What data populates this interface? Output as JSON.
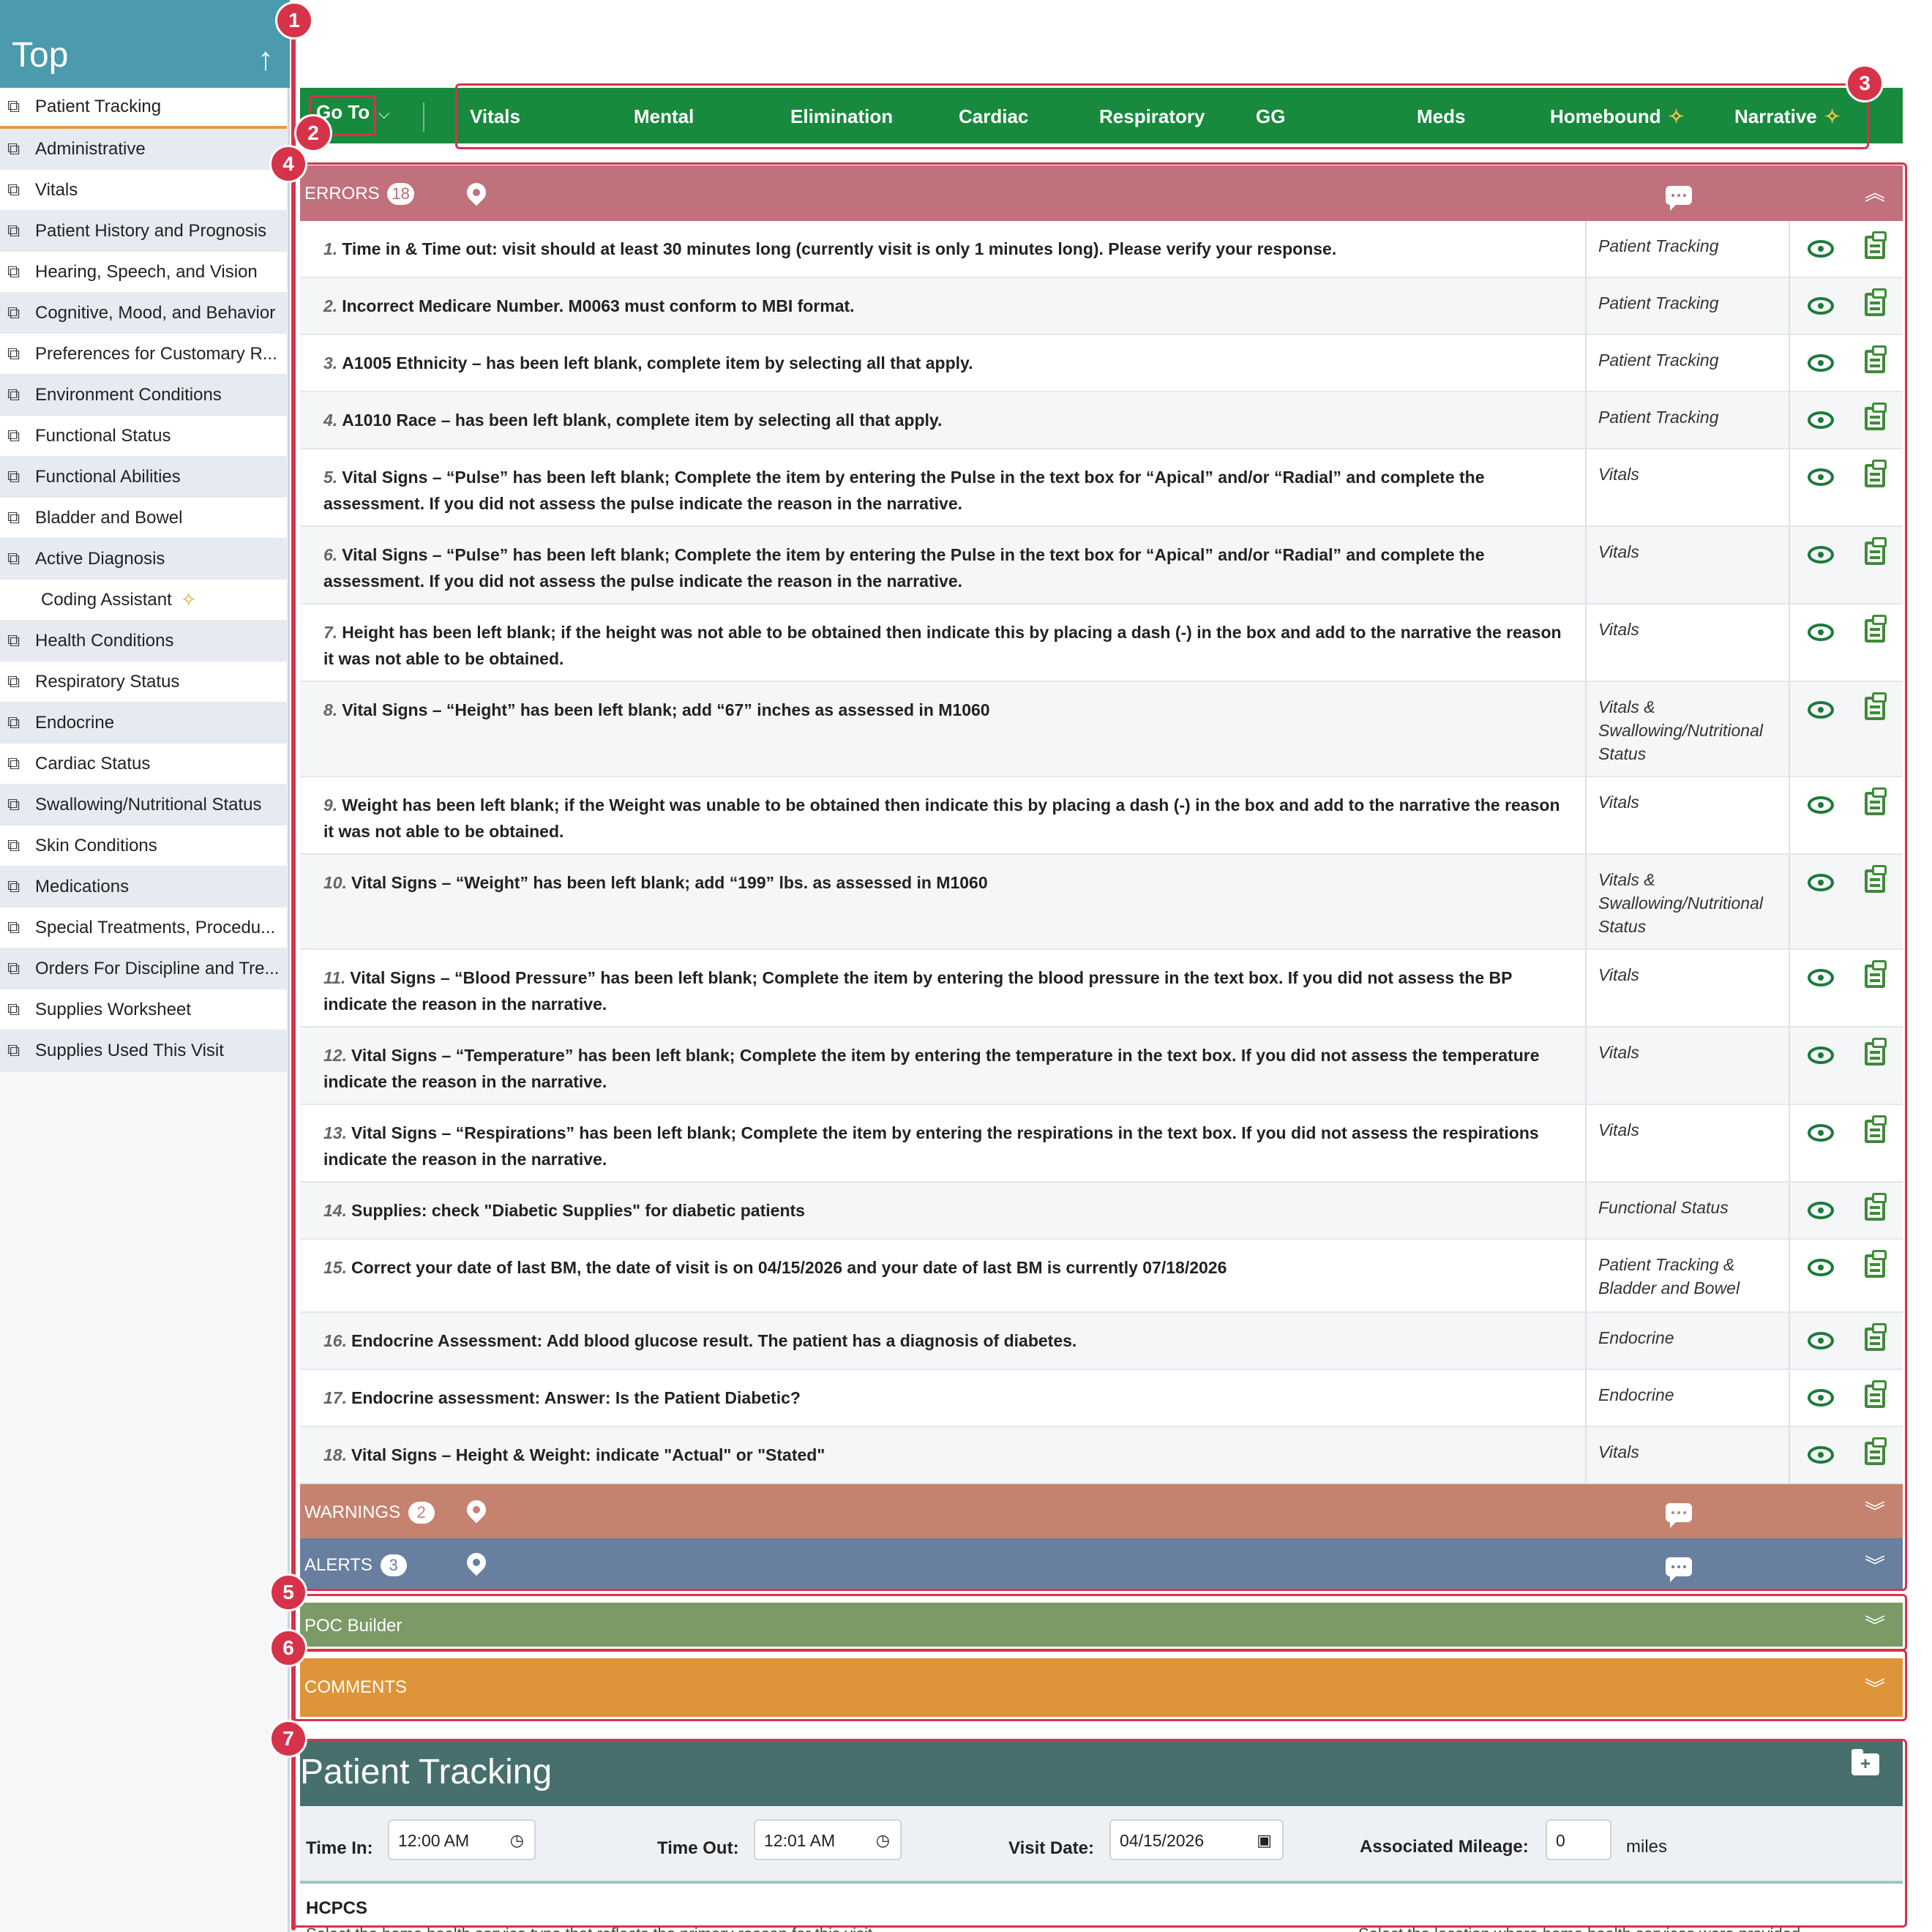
{
  "sidebar": {
    "top_label": "Top",
    "top_arrow": "↑",
    "items": [
      {
        "label": "Patient Tracking",
        "icon": "external-link-icon",
        "active": true
      },
      {
        "label": "Administrative",
        "icon": "external-link-icon"
      },
      {
        "label": "Vitals",
        "icon": "external-link-icon"
      },
      {
        "label": "Patient History and Prognosis",
        "icon": "external-link-icon"
      },
      {
        "label": "Hearing, Speech, and Vision",
        "icon": "external-link-icon"
      },
      {
        "label": "Cognitive, Mood, and Behavior",
        "icon": "external-link-icon"
      },
      {
        "label": "Preferences for Customary R...",
        "icon": "external-link-icon"
      },
      {
        "label": "Environment Conditions",
        "icon": "external-link-icon"
      },
      {
        "label": "Functional Status",
        "icon": "external-link-icon"
      },
      {
        "label": "Functional Abilities",
        "icon": "external-link-icon"
      },
      {
        "label": "Bladder and Bowel",
        "icon": "external-link-icon"
      },
      {
        "label": "Active Diagnosis",
        "icon": "external-link-icon"
      },
      {
        "label": "Coding Assistant",
        "icon": "sparkle-icon"
      },
      {
        "label": "Health Conditions",
        "icon": "external-link-icon"
      },
      {
        "label": "Respiratory Status",
        "icon": "external-link-icon"
      },
      {
        "label": "Endocrine",
        "icon": "external-link-icon"
      },
      {
        "label": "Cardiac Status",
        "icon": "external-link-icon"
      },
      {
        "label": "Swallowing/Nutritional Status",
        "icon": "external-link-icon"
      },
      {
        "label": "Skin Conditions",
        "icon": "external-link-icon"
      },
      {
        "label": "Medications",
        "icon": "external-link-icon"
      },
      {
        "label": "Special Treatments, Procedu...",
        "icon": "external-link-icon"
      },
      {
        "label": "Orders For Discipline and Tre...",
        "icon": "external-link-icon"
      },
      {
        "label": "Supplies Worksheet",
        "icon": "external-link-icon"
      },
      {
        "label": "Supplies Used This Visit",
        "icon": "external-link-icon"
      }
    ]
  },
  "topnav": {
    "goto_label": "Go To",
    "tabs": [
      "Vitals",
      "Mental",
      "Elimination",
      "Cardiac",
      "Respiratory",
      "GG",
      "Meds",
      "Homebound",
      "Narrative"
    ],
    "color": "#178a3d"
  },
  "callouts": [
    "1",
    "2",
    "3",
    "4",
    "5",
    "6",
    "7"
  ],
  "errors_panel": {
    "title": "ERRORS",
    "count": "18",
    "color": "#c0717b"
  },
  "errors": [
    {
      "n": "1.",
      "text": "Time in & Time out: visit should at least 30 minutes long (currently visit is only 1 minutes long). Please verify your response.",
      "section": "Patient Tracking"
    },
    {
      "n": "2.",
      "text": "Incorrect Medicare Number. M0063 must conform to MBI format.",
      "section": "Patient Tracking"
    },
    {
      "n": "3.",
      "text": "A1005 Ethnicity – has been left blank, complete item by selecting all that apply.",
      "section": "Patient Tracking"
    },
    {
      "n": "4.",
      "text": "A1010 Race – has been left blank, complete item by selecting all that apply.",
      "section": "Patient Tracking"
    },
    {
      "n": "5.",
      "text": "Vital Signs – “Pulse” has been left blank; Complete the item by entering the Pulse in the text box for “Apical” and/or “Radial” and complete the assessment. If you did not assess the pulse indicate the reason in the narrative.",
      "section": "Vitals"
    },
    {
      "n": "6.",
      "text": "Vital Signs – “Pulse” has been left blank; Complete the item by entering the Pulse in the text box for “Apical” and/or “Radial” and complete the assessment. If you did not assess the pulse indicate the reason in the narrative.",
      "section": "Vitals"
    },
    {
      "n": "7.",
      "text": "Height has been left blank; if the height was not able to be obtained then indicate this by placing a dash (-) in the box and add to the narrative the reason it was not able to be obtained.",
      "section": "Vitals"
    },
    {
      "n": "8.",
      "text": "Vital Signs – “Height” has been left blank; add “67” inches as assessed in M1060",
      "section": "Vitals & Swallowing/Nutritional Status"
    },
    {
      "n": "9.",
      "text": "Weight has been left blank; if the Weight was unable to be obtained then indicate this by placing a dash (-) in the box and add to the narrative the reason it was not able to be obtained.",
      "section": "Vitals"
    },
    {
      "n": "10.",
      "text": "Vital Signs – “Weight” has been left blank; add “199” lbs. as assessed in M1060",
      "section": "Vitals & Swallowing/Nutritional Status"
    },
    {
      "n": "11.",
      "text": "Vital Signs – “Blood Pressure” has been left blank; Complete the item by entering the blood pressure in the text box. If you did not assess the BP indicate the reason in the narrative.",
      "section": "Vitals"
    },
    {
      "n": "12.",
      "text": "Vital Signs – “Temperature” has been left blank; Complete the item by entering the temperature in the text box. If you did not assess the temperature indicate the reason in the narrative.",
      "section": "Vitals"
    },
    {
      "n": "13.",
      "text": "Vital Signs – “Respirations” has been left blank; Complete the item by entering the respirations in the text box. If you did not assess the respirations indicate the reason in the narrative.",
      "section": "Vitals"
    },
    {
      "n": "14.",
      "text": "Supplies: check \"Diabetic Supplies\" for diabetic patients",
      "section": "Functional Status"
    },
    {
      "n": "15.",
      "text": "Correct your date of last BM, the date of visit is on 04/15/2026 and your date of last BM is currently 07/18/2026",
      "section": "Patient Tracking & Bladder and Bowel"
    },
    {
      "n": "16.",
      "text": "Endocrine Assessment: Add blood glucose result. The patient has a diagnosis of diabetes.",
      "section": "Endocrine"
    },
    {
      "n": "17.",
      "text": "Endocrine assessment: Answer: Is the Patient Diabetic?",
      "section": "Endocrine"
    },
    {
      "n": "18.",
      "text": "Vital Signs – Height & Weight: indicate \"Actual\" or \"Stated\"",
      "section": "Vitals"
    }
  ],
  "warnings_panel": {
    "title": "WARNINGS",
    "count": "2",
    "color": "#c5826f"
  },
  "alerts_panel": {
    "title": "ALERTS",
    "count": "3",
    "color": "#687f9f"
  },
  "poc_panel": {
    "title": "POC Builder",
    "color": "#7b9a65"
  },
  "comments_panel": {
    "title": "COMMENTS",
    "color": "#de9438"
  },
  "patient_tracking": {
    "title": "Patient Tracking",
    "time_in_label": "Time In:",
    "time_in_value": "12:00 AM",
    "time_out_label": "Time Out:",
    "time_out_value": "12:01 AM",
    "visit_date_label": "Visit Date:",
    "visit_date_value": "04/15/2026",
    "mileage_label": "Associated Mileage:",
    "mileage_value": "0",
    "miles_unit": "miles",
    "hcpcs_label": "HCPCS",
    "hint_left": "Select the home health service type that reflects the primary reason for this visit",
    "hint_right": "Select the location where home health services were provided"
  }
}
